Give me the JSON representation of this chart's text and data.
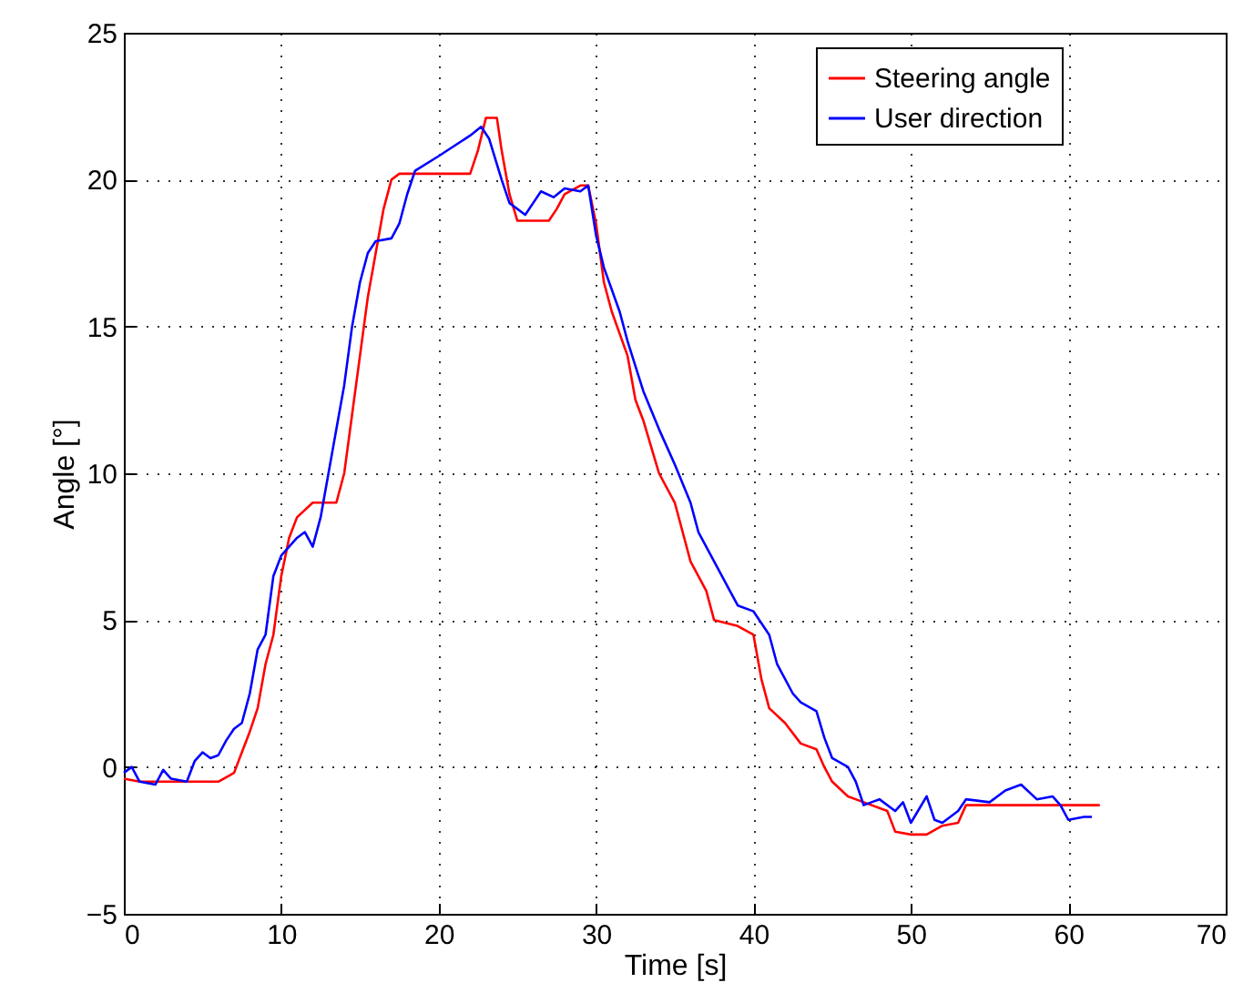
{
  "chart_data": {
    "type": "line",
    "xlabel": "Time [s]",
    "ylabel": "Angle [°]",
    "xlim": [
      0,
      70
    ],
    "ylim": [
      -5,
      25
    ],
    "xticks": [
      0,
      10,
      20,
      30,
      40,
      50,
      60,
      70
    ],
    "yticks": [
      -5,
      0,
      5,
      10,
      15,
      20,
      25
    ],
    "grid": true,
    "legend": "top right",
    "line_style": "solid",
    "marker": "none",
    "series": [
      {
        "name": "Steering angle",
        "color": "#ff0000",
        "x": [
          0,
          1,
          6,
          7,
          7.5,
          8,
          8.5,
          9,
          9.5,
          10,
          10.5,
          11,
          12,
          13.5,
          14,
          14.5,
          15,
          15.5,
          16,
          16.5,
          17,
          17.5,
          22,
          22.5,
          23,
          23.7,
          24,
          24.5,
          25,
          27,
          27.5,
          28,
          29,
          29.5,
          30,
          30.5,
          31,
          32,
          32.5,
          33,
          34,
          35,
          35.5,
          36,
          37,
          37.5,
          39,
          40,
          40.5,
          41,
          42,
          43,
          44,
          44.5,
          45,
          46,
          47,
          48.5,
          49,
          50,
          51,
          52,
          53,
          53.5,
          62
        ],
        "values": [
          -0.4,
          -0.5,
          -0.5,
          -0.2,
          0.5,
          1.2,
          2,
          3.5,
          4.5,
          6.5,
          7.8,
          8.5,
          9,
          9,
          10,
          12,
          14,
          16,
          17.5,
          19,
          20,
          20.2,
          20.2,
          21,
          22.1,
          22.1,
          21,
          19.5,
          18.6,
          18.6,
          19,
          19.5,
          19.8,
          19.8,
          18.5,
          16.5,
          15.5,
          14,
          12.5,
          11.8,
          10,
          9,
          8,
          7,
          6,
          5,
          4.8,
          4.5,
          3,
          2,
          1.5,
          0.8,
          0.6,
          0,
          -0.5,
          -1,
          -1.2,
          -1.5,
          -2.2,
          -2.3,
          -2.3,
          -2,
          -1.9,
          -1.3,
          -1.3
        ]
      },
      {
        "name": "User direction",
        "color": "#0000ff",
        "x": [
          0,
          0.5,
          1,
          2,
          2.5,
          3,
          4,
          4.5,
          5,
          5.5,
          6,
          6.5,
          7,
          7.5,
          8,
          8.5,
          9,
          9.5,
          10,
          11,
          11.5,
          12,
          12.5,
          13,
          13.5,
          14,
          14.5,
          15,
          15.5,
          16,
          17,
          17.5,
          18,
          18.5,
          20,
          22,
          22.7,
          23.2,
          24,
          24.5,
          25.5,
          26,
          26.5,
          27.3,
          28,
          29,
          29.5,
          30,
          30.5,
          31.5,
          32,
          33,
          34,
          35,
          36,
          36.5,
          37.5,
          38.5,
          39,
          40,
          41,
          41.5,
          42.5,
          43,
          44,
          44.5,
          45,
          46,
          46.5,
          47,
          47.5,
          48,
          49,
          49.5,
          50,
          51,
          51.5,
          52,
          53,
          53.5,
          55,
          56,
          57,
          58,
          59,
          59.5,
          60,
          61,
          61.5
        ],
        "values": [
          -0.2,
          0,
          -0.5,
          -0.6,
          -0.1,
          -0.4,
          -0.5,
          0.2,
          0.5,
          0.3,
          0.4,
          0.9,
          1.3,
          1.5,
          2.5,
          4,
          4.5,
          6.5,
          7.2,
          7.8,
          8,
          7.5,
          8.5,
          10,
          11.5,
          13,
          15,
          16.5,
          17.5,
          17.9,
          18,
          18.5,
          19.5,
          20.3,
          20.8,
          21.5,
          21.8,
          21.4,
          20,
          19.2,
          18.8,
          19.2,
          19.6,
          19.4,
          19.7,
          19.6,
          19.8,
          18.1,
          17,
          15.5,
          14.5,
          12.8,
          11.5,
          10.3,
          9,
          8,
          7,
          6,
          5.5,
          5.3,
          4.5,
          3.5,
          2.5,
          2.2,
          1.9,
          1,
          0.3,
          0,
          -0.5,
          -1.3,
          -1.2,
          -1.1,
          -1.5,
          -1.2,
          -1.9,
          -1,
          -1.8,
          -1.9,
          -1.5,
          -1.1,
          -1.2,
          -0.8,
          -0.6,
          -1.1,
          -1,
          -1.3,
          -1.8,
          -1.7,
          -1.7
        ]
      }
    ]
  }
}
